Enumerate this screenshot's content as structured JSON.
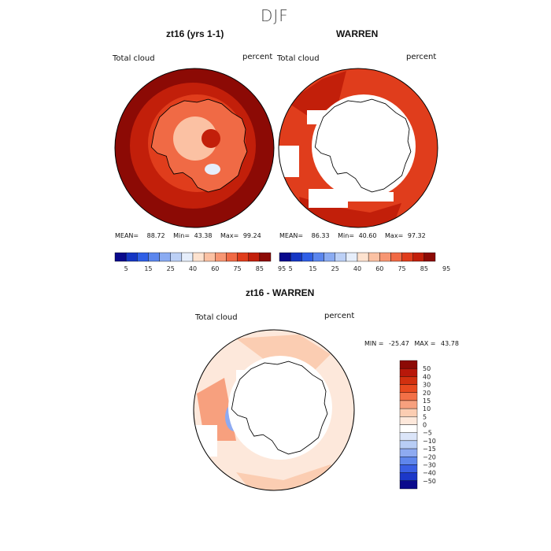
{
  "supertitle": "DJF",
  "chart_data": [
    {
      "type": "heatmap",
      "title": "zt16 (yrs 1-1)",
      "left_label": "Total cloud",
      "right_label": "percent",
      "stats": {
        "mean_label": "MEAN=",
        "mean": "88.72",
        "min_label": "Min=",
        "min": "43.38",
        "max_label": "Max=",
        "max": "99.24"
      },
      "colorbar_levels": [
        "5",
        "15",
        "25",
        "40",
        "60",
        "75",
        "85",
        "95"
      ],
      "colorbar_colors": [
        "#0a0a8c",
        "#1536c4",
        "#2f5fe6",
        "#5b86ee",
        "#8aabf2",
        "#bcd0f6",
        "#e6eefb",
        "#fde2cf",
        "#fbc1a3",
        "#f79673",
        "#f06a45",
        "#e03d1c",
        "#c21f0a",
        "#8c0a05"
      ],
      "projection": "south polar stereographic"
    },
    {
      "type": "heatmap",
      "title": "WARREN",
      "left_label": "Total cloud",
      "right_label": "percent",
      "stats": {
        "mean_label": "MEAN=",
        "mean": "86.33",
        "min_label": "Min=",
        "min": "40.60",
        "max_label": "Max=",
        "max": "97.32"
      },
      "colorbar_levels": [
        "5",
        "15",
        "25",
        "40",
        "60",
        "75",
        "85",
        "95"
      ],
      "colorbar_colors": [
        "#0a0a8c",
        "#1536c4",
        "#2f5fe6",
        "#5b86ee",
        "#8aabf2",
        "#bcd0f6",
        "#e6eefb",
        "#fde2cf",
        "#fbc1a3",
        "#f79673",
        "#f06a45",
        "#e03d1c",
        "#c21f0a",
        "#8c0a05"
      ],
      "projection": "south polar stereographic"
    },
    {
      "type": "heatmap",
      "title": "zt16 - WARREN",
      "left_label": "Total cloud",
      "right_label": "percent",
      "stats": {
        "min_label": "MIN =",
        "min": "-25.47",
        "max_label": "MAX =",
        "max": "43.78"
      },
      "colorbar_levels": [
        "50",
        "40",
        "30",
        "20",
        "15",
        "10",
        "5",
        "0",
        "−5",
        "−10",
        "−15",
        "−20",
        "−30",
        "−40",
        "−50"
      ],
      "colorbar_colors": [
        "#8c0a05",
        "#b8180a",
        "#d2300f",
        "#e84a1f",
        "#f27047",
        "#f7a07e",
        "#fbcdb2",
        "#fde8db",
        "#ffffff",
        "#dbe5f9",
        "#b8cdf5",
        "#8eaaf1",
        "#5f86ec",
        "#3a5fe4",
        "#1c38c9",
        "#0a0a8c"
      ],
      "projection": "south polar stereographic"
    }
  ]
}
